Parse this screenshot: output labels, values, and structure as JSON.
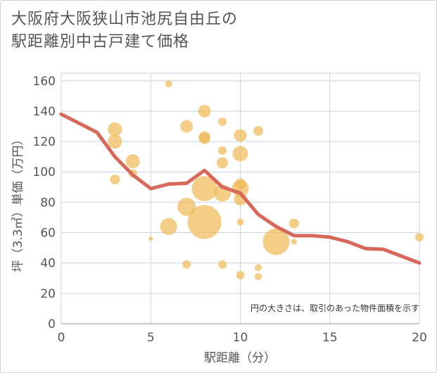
{
  "title_line1": "大阪府大阪狭山市池尻自由丘の",
  "title_line2": "駅距離別中古戸建て価格",
  "chart_data": {
    "type": "scatter",
    "title": "大阪府大阪狭山市池尻自由丘の駅距離別中古戸建て価格",
    "xlabel": "駅距離（分）",
    "ylabel": "坪（3.3㎡）単価（万円）",
    "xlim": [
      0,
      20
    ],
    "ylim": [
      0,
      165
    ],
    "x_ticks": [
      0,
      5,
      10,
      15,
      20
    ],
    "y_ticks": [
      0,
      20,
      40,
      60,
      80,
      100,
      120,
      140,
      160
    ],
    "grid": true,
    "note": "円の大きさは、取引のあった物件面積を示す",
    "bubble_color": "#f0b954",
    "line_color": "#d7685a",
    "points": [
      {
        "x": 3,
        "y": 128,
        "s": 10
      },
      {
        "x": 3,
        "y": 120,
        "s": 10
      },
      {
        "x": 3,
        "y": 95,
        "s": 7
      },
      {
        "x": 4,
        "y": 107,
        "s": 10
      },
      {
        "x": 4,
        "y": 99,
        "s": 6
      },
      {
        "x": 5,
        "y": 56,
        "s": 3
      },
      {
        "x": 6,
        "y": 158,
        "s": 5
      },
      {
        "x": 6,
        "y": 64,
        "s": 12
      },
      {
        "x": 7,
        "y": 130,
        "s": 9
      },
      {
        "x": 7,
        "y": 77,
        "s": 13
      },
      {
        "x": 7,
        "y": 39,
        "s": 6
      },
      {
        "x": 8,
        "y": 140,
        "s": 9
      },
      {
        "x": 8,
        "y": 123,
        "s": 8
      },
      {
        "x": 8,
        "y": 122,
        "s": 8
      },
      {
        "x": 8,
        "y": 89,
        "s": 18
      },
      {
        "x": 8,
        "y": 67,
        "s": 24
      },
      {
        "x": 9,
        "y": 133,
        "s": 6
      },
      {
        "x": 9,
        "y": 114,
        "s": 6
      },
      {
        "x": 9,
        "y": 106,
        "s": 8
      },
      {
        "x": 9,
        "y": 86,
        "s": 12
      },
      {
        "x": 9,
        "y": 39,
        "s": 6
      },
      {
        "x": 10,
        "y": 124,
        "s": 9
      },
      {
        "x": 10,
        "y": 112,
        "s": 11
      },
      {
        "x": 10,
        "y": 92,
        "s": 8
      },
      {
        "x": 10,
        "y": 89,
        "s": 12
      },
      {
        "x": 10,
        "y": 82,
        "s": 9
      },
      {
        "x": 10,
        "y": 67,
        "s": 5
      },
      {
        "x": 10,
        "y": 32,
        "s": 6
      },
      {
        "x": 11,
        "y": 127,
        "s": 7
      },
      {
        "x": 11,
        "y": 37,
        "s": 5
      },
      {
        "x": 11,
        "y": 31,
        "s": 5
      },
      {
        "x": 12,
        "y": 54,
        "s": 19
      },
      {
        "x": 13,
        "y": 66,
        "s": 7
      },
      {
        "x": 13,
        "y": 54,
        "s": 4
      },
      {
        "x": 20,
        "y": 57,
        "s": 6
      }
    ],
    "line": {
      "x": [
        0,
        1,
        2,
        3,
        4,
        5,
        6,
        7,
        8,
        9,
        10,
        11,
        12,
        13,
        14,
        15,
        16,
        17,
        18,
        19,
        20
      ],
      "y": [
        138,
        132,
        126,
        110,
        98,
        89,
        92,
        92.5,
        101,
        90,
        86,
        72,
        64,
        58,
        58,
        57,
        54,
        49.5,
        49,
        44.5,
        40
      ]
    }
  }
}
